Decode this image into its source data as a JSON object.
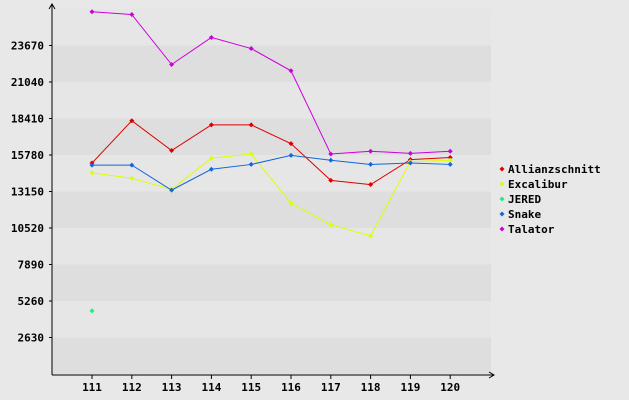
{
  "chart_data": {
    "type": "line",
    "categories": [
      "111",
      "112",
      "113",
      "114",
      "115",
      "116",
      "117",
      "118",
      "119",
      "120"
    ],
    "y_ticks": [
      "2630",
      "5260",
      "7890",
      "10520",
      "13150",
      "15780",
      "18410",
      "21040",
      "23670"
    ],
    "ylim": [
      0,
      26300
    ],
    "grid": true,
    "legend_position": "right",
    "series": [
      {
        "name": "Allianzschnitt",
        "color": "#dd0000",
        "values": [
          15200,
          18250,
          16100,
          17950,
          17950,
          16600,
          13950,
          13650,
          15450,
          15600
        ]
      },
      {
        "name": "Excalibur",
        "color": "#ddff00",
        "values": [
          14500,
          14100,
          13300,
          15550,
          15850,
          12300,
          10750,
          9950,
          15300,
          15400
        ]
      },
      {
        "name": "JERED",
        "color": "#22ee77",
        "values": [
          4550,
          null,
          null,
          null,
          null,
          null,
          null,
          null,
          null,
          null
        ]
      },
      {
        "name": "Snake",
        "color": "#1166dd",
        "values": [
          15050,
          15050,
          13250,
          14750,
          15100,
          15750,
          15400,
          15100,
          15200,
          15100
        ]
      },
      {
        "name": "Talator",
        "color": "#cc00dd",
        "values": [
          26100,
          25900,
          22300,
          24250,
          23450,
          21850,
          15850,
          16050,
          15900,
          16050
        ]
      }
    ]
  }
}
